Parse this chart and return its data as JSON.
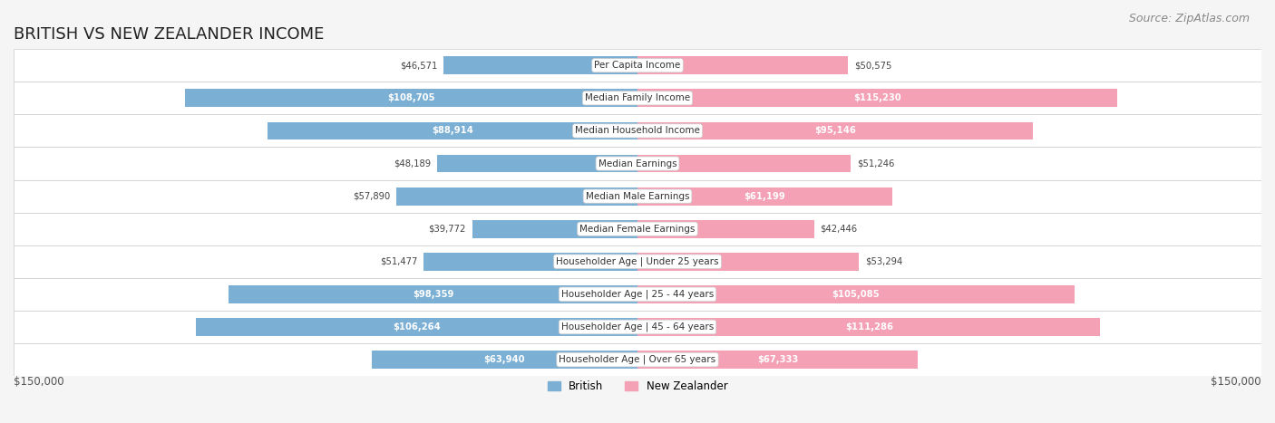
{
  "title": "BRITISH VS NEW ZEALANDER INCOME",
  "source": "Source: ZipAtlas.com",
  "categories": [
    "Per Capita Income",
    "Median Family Income",
    "Median Household Income",
    "Median Earnings",
    "Median Male Earnings",
    "Median Female Earnings",
    "Householder Age | Under 25 years",
    "Householder Age | 25 - 44 years",
    "Householder Age | 45 - 64 years",
    "Householder Age | Over 65 years"
  ],
  "british_values": [
    46571,
    108705,
    88914,
    48189,
    57890,
    39772,
    51477,
    98359,
    106264,
    63940
  ],
  "nz_values": [
    50575,
    115230,
    95146,
    51246,
    61199,
    42446,
    53294,
    105085,
    111286,
    67333
  ],
  "british_labels": [
    "$46,571",
    "$108,705",
    "$88,914",
    "$48,189",
    "$57,890",
    "$39,772",
    "$51,477",
    "$98,359",
    "$106,264",
    "$63,940"
  ],
  "nz_labels": [
    "$50,575",
    "$115,230",
    "$95,146",
    "$51,246",
    "$61,199",
    "$42,446",
    "$53,294",
    "$105,085",
    "$111,286",
    "$67,333"
  ],
  "british_color": "#7bafd4",
  "nz_color": "#f4a0b5",
  "british_label_color_normal": "#555555",
  "british_label_color_inside": "#ffffff",
  "nz_label_color_normal": "#555555",
  "nz_label_color_inside": "#ffffff",
  "background_color": "#f5f5f5",
  "row_bg_color": "#ffffff",
  "max_value": 150000,
  "xlabel_left": "$150,000",
  "xlabel_right": "$150,000",
  "legend_british": "British",
  "legend_nz": "New Zealander",
  "title_fontsize": 13,
  "source_fontsize": 9,
  "bar_height": 0.55,
  "inside_label_threshold": 60000
}
